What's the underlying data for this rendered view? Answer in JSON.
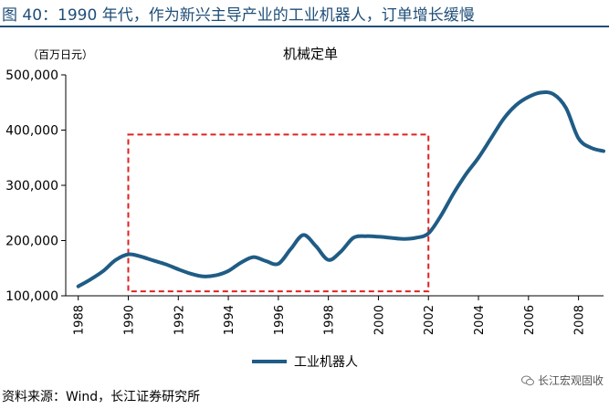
{
  "header": {
    "figure_title": "图 40：1990 年代，作为新兴主导产业的工业机器人，订单增长缓慢"
  },
  "chart_data": {
    "type": "line",
    "title": "机械定单",
    "unit_label": "（百万日元）",
    "xlabel": "",
    "ylabel": "",
    "xlim": [
      1987.5,
      2009
    ],
    "ylim": [
      100000,
      500000
    ],
    "x_ticks": [
      1988,
      1990,
      1992,
      1994,
      1996,
      1998,
      2000,
      2002,
      2004,
      2006,
      2008
    ],
    "y_ticks": [
      100000,
      200000,
      300000,
      400000,
      500000
    ],
    "y_tick_labels": [
      "100,000",
      "200,000",
      "300,000",
      "400,000",
      "500,000"
    ],
    "grid": false,
    "legend_position": "bottom",
    "series": [
      {
        "name": "工业机器人",
        "color": "#1f5c85",
        "x": [
          1988,
          1988.5,
          1989,
          1989.5,
          1990,
          1990.5,
          1991,
          1991.5,
          1992,
          1992.5,
          1993,
          1993.5,
          1994,
          1994.5,
          1995,
          1995.5,
          1996,
          1996.5,
          1997,
          1997.5,
          1998,
          1998.5,
          1999,
          1999.5,
          2000,
          2000.5,
          2001,
          2001.5,
          2002,
          2002.5,
          2003,
          2003.5,
          2004,
          2004.5,
          2005,
          2005.5,
          2006,
          2006.5,
          2007,
          2007.5,
          2008,
          2008.5,
          2009
        ],
        "values": [
          117000,
          130000,
          145000,
          165000,
          175000,
          171000,
          164000,
          157000,
          148000,
          140000,
          135000,
          137000,
          145000,
          160000,
          170000,
          163000,
          158000,
          185000,
          210000,
          190000,
          165000,
          180000,
          205000,
          208000,
          207000,
          205000,
          203000,
          205000,
          213000,
          245000,
          285000,
          320000,
          350000,
          385000,
          420000,
          445000,
          460000,
          468000,
          465000,
          440000,
          385000,
          368000,
          362000
        ]
      }
    ],
    "annotation": {
      "type": "dashed-rectangle",
      "color": "#e02020",
      "x_range": [
        1990,
        2002
      ],
      "y_range": [
        108000,
        392000
      ]
    }
  },
  "footer": {
    "source": "资料来源：Wind，长江证券研究所",
    "watermark": "长江宏观固收"
  }
}
